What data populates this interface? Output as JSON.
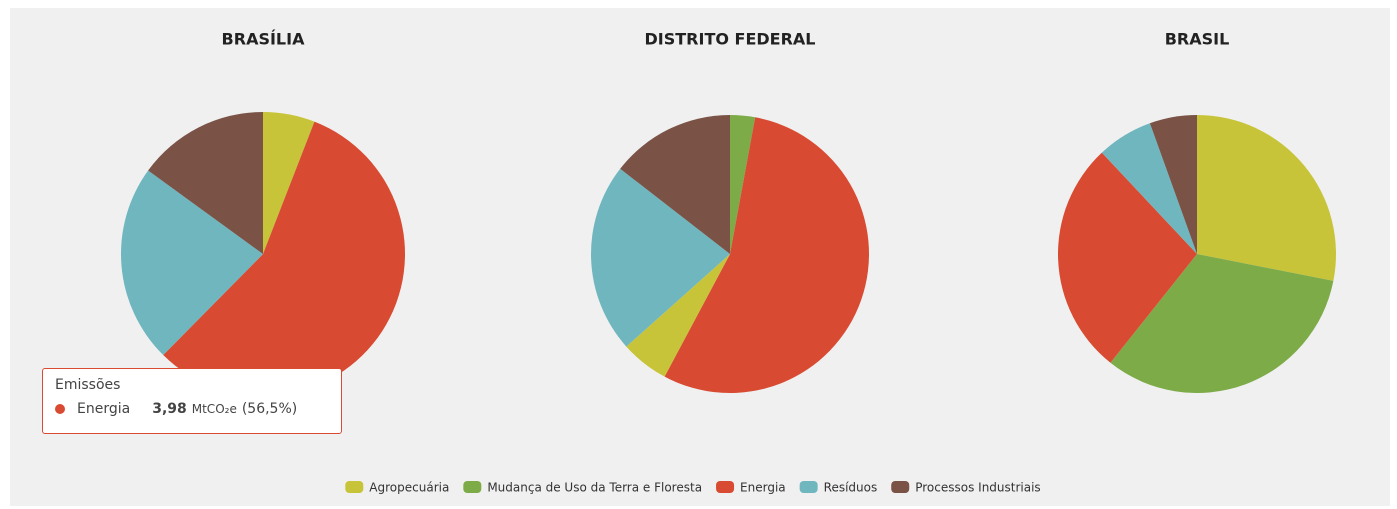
{
  "chart_data": [
    {
      "type": "pie",
      "title": "BRASÍLIA",
      "categories": [
        "Agropecuária",
        "Energia",
        "Resíduos",
        "Processos Industriais"
      ],
      "values": [
        5.9,
        56.5,
        22.6,
        15.0
      ]
    },
    {
      "type": "pie",
      "title": "DISTRITO FEDERAL",
      "categories": [
        "Mudança de Uso da Terra e Floresta",
        "Energia",
        "Agropecuária",
        "Resíduos",
        "Processos Industriais"
      ],
      "values": [
        2.9,
        54.9,
        5.6,
        22.1,
        14.5
      ]
    },
    {
      "type": "pie",
      "title": "BRASIL",
      "categories": [
        "Agropecuária",
        "Mudança de Uso da Terra e Floresta",
        "Energia",
        "Resíduos",
        "Processos Industriais"
      ],
      "values": [
        28.1,
        32.6,
        27.3,
        6.5,
        5.5
      ]
    }
  ],
  "legend": [
    {
      "name": "Agropecuária",
      "color": "#c8c43a"
    },
    {
      "name": "Mudança de Uso da Terra e Floresta",
      "color": "#7dab48"
    },
    {
      "name": "Energia",
      "color": "#d84b32"
    },
    {
      "name": "Resíduos",
      "color": "#6fb6bf"
    },
    {
      "name": "Processos Industriais",
      "color": "#7a5246"
    }
  ],
  "tooltip": {
    "title": "Emissões",
    "name": "Energia",
    "value": "3,98",
    "unit": "MtCO₂e",
    "share": "(56,5%)"
  }
}
